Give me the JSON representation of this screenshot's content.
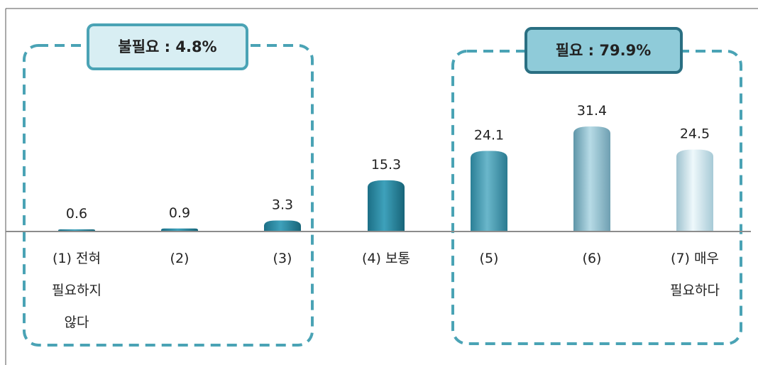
{
  "chart_data": {
    "type": "bar",
    "title": "",
    "xlabel": "",
    "ylabel": "",
    "categories": [
      [
        "(1) 전혀",
        "필요하지",
        "않다"
      ],
      [
        "(2)"
      ],
      [
        "(3)"
      ],
      [
        "(4) 보통"
      ],
      [
        "(5)"
      ],
      [
        "(6)"
      ],
      [
        "(7) 매우",
        "필요하다"
      ]
    ],
    "values": [
      0.6,
      0.9,
      3.3,
      15.3,
      24.1,
      31.4,
      24.5
    ],
    "value_labels": [
      "0.6",
      "0.9",
      "3.3",
      "15.3",
      "24.1",
      "31.4",
      "24.5"
    ],
    "ylim": [
      0,
      35
    ],
    "grid": false,
    "groups": [
      {
        "label": "불필요 : 4.8%",
        "members": [
          0,
          1,
          2
        ],
        "style": "light"
      },
      {
        "label": "필요 : 79.9%",
        "members": [
          4,
          5,
          6
        ],
        "style": "dark"
      }
    ],
    "colors": {
      "bar_dark": "#1f7e96",
      "bar_mid": "#4aa6bd",
      "bar_light": "#d6eef5",
      "group_border": "#4aa3b5",
      "box_fill_light": "#d8eef3",
      "box_fill_dark": "#8fcbd9",
      "baseline": "#8c8c8c",
      "text": "#222222"
    }
  }
}
